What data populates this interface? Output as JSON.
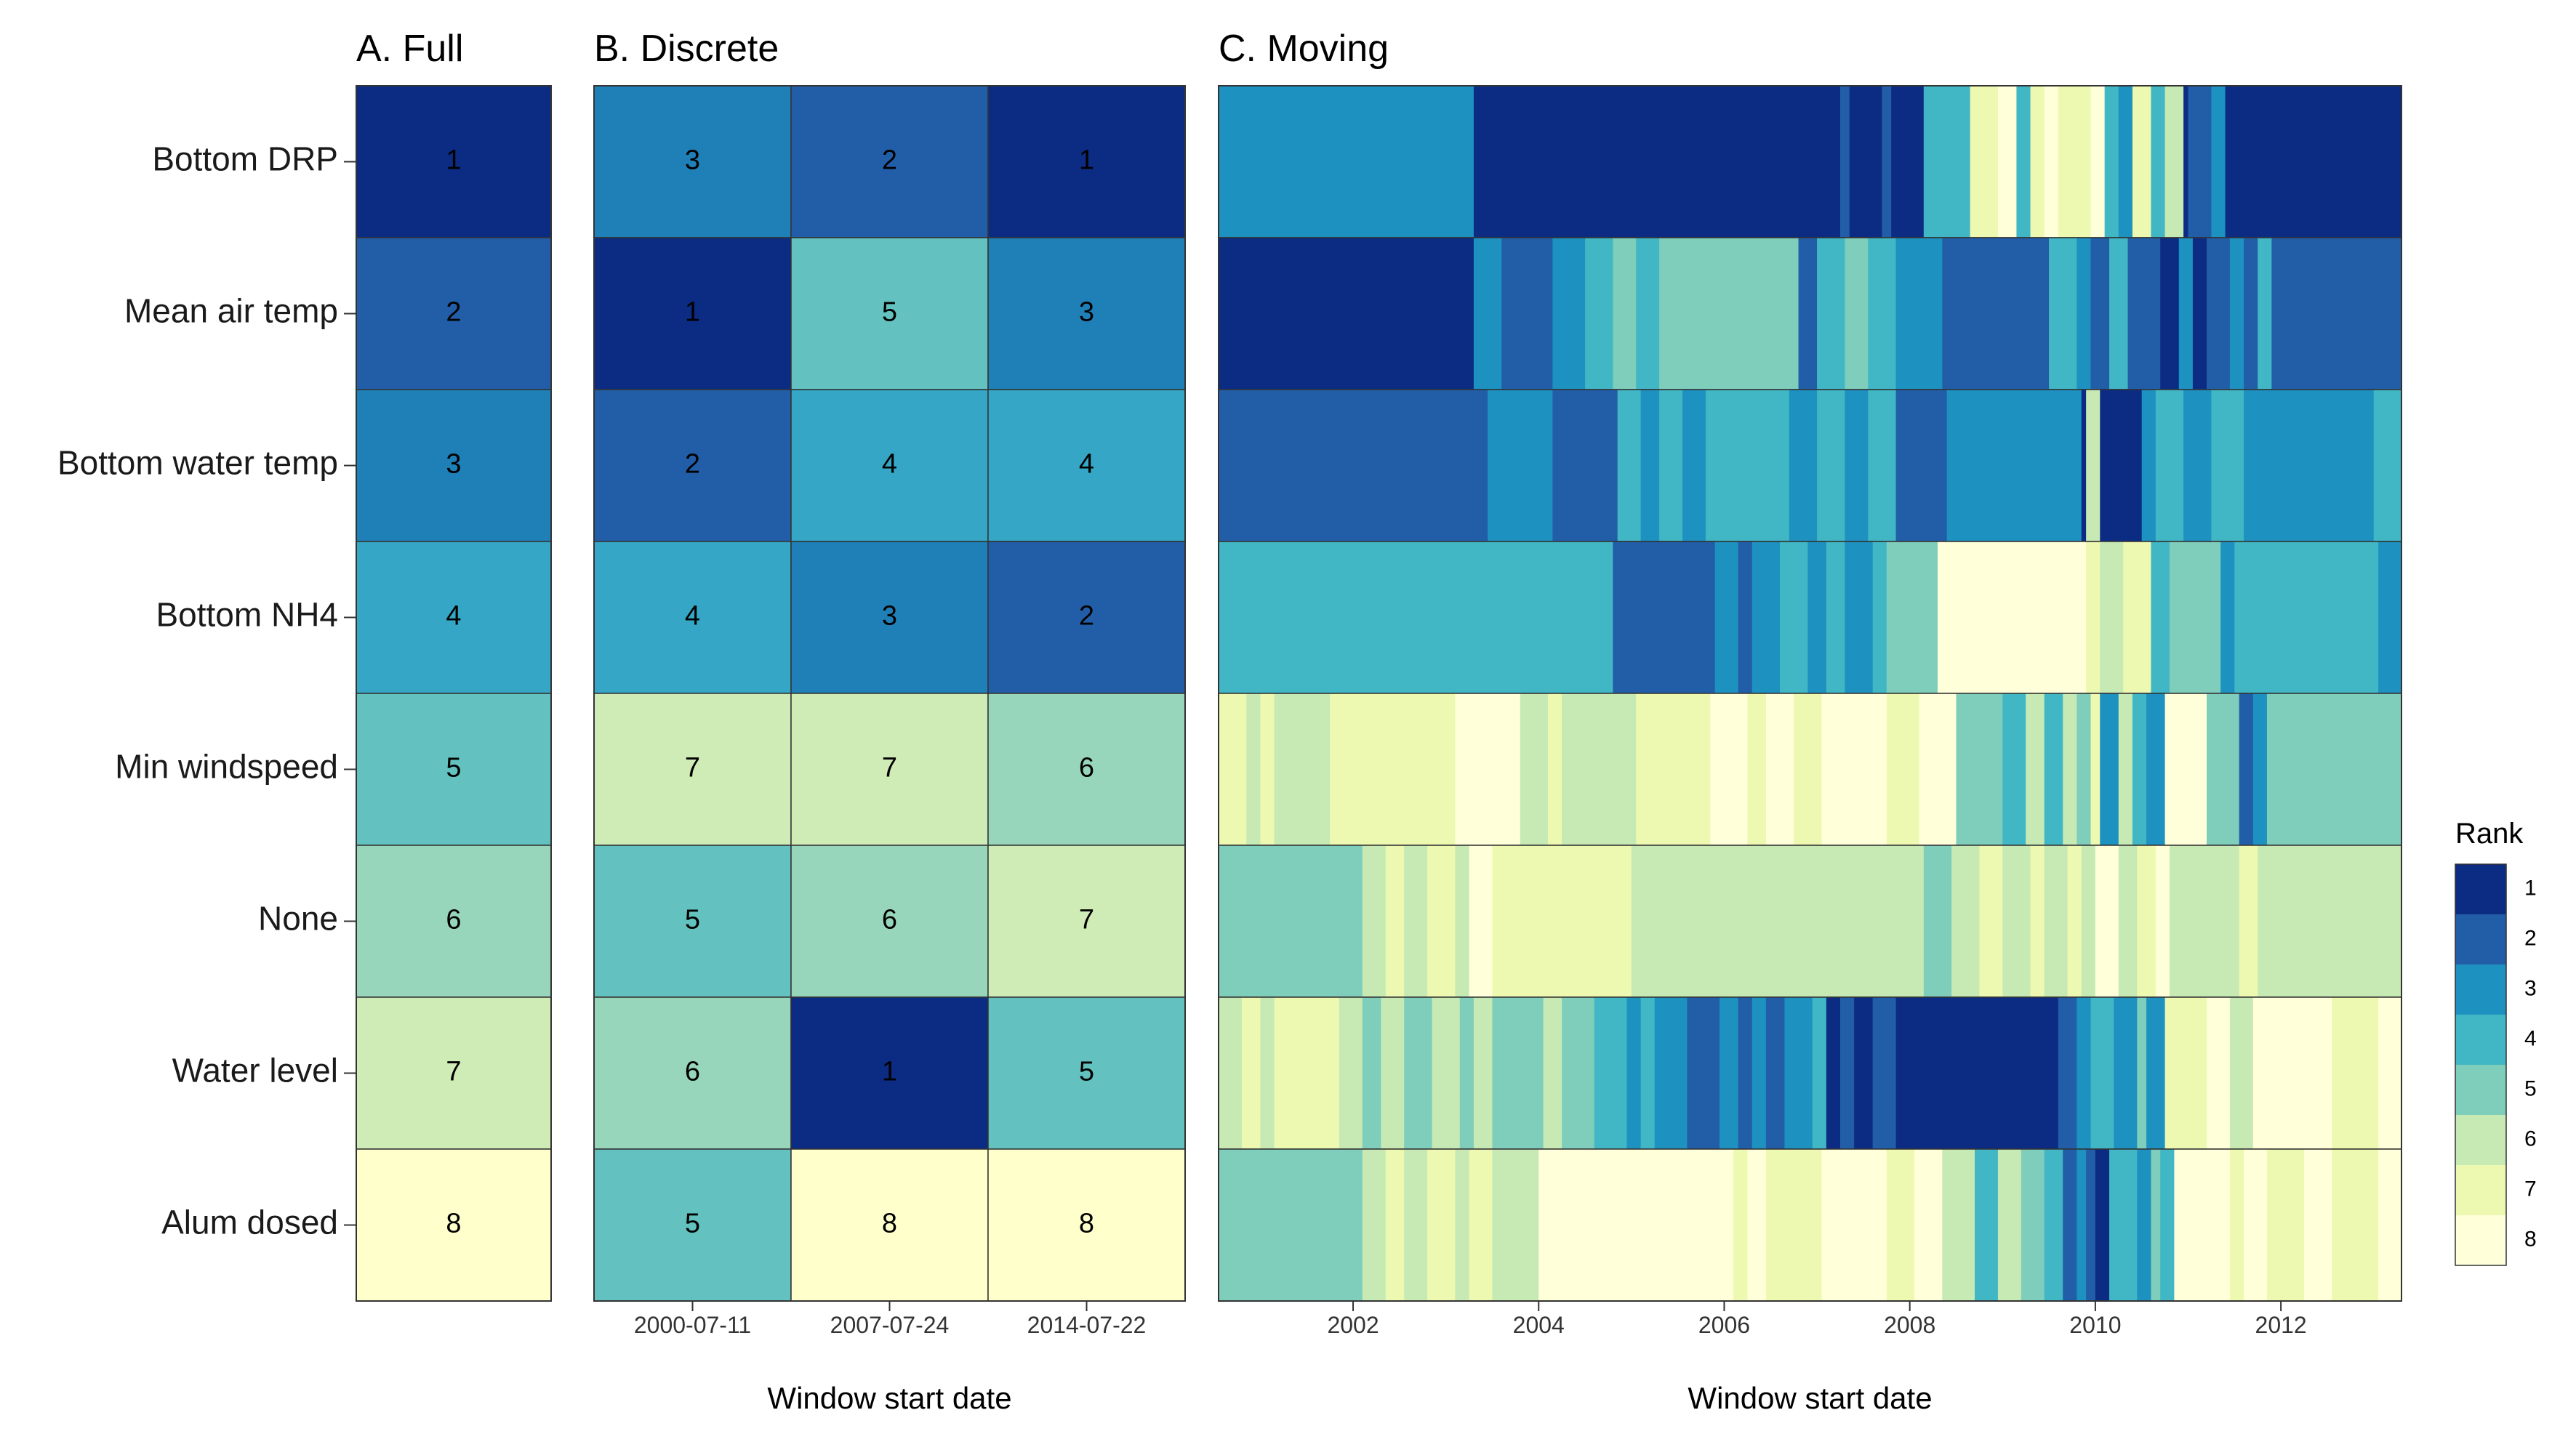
{
  "chart_data": {
    "type": "heatmap",
    "rows": [
      "Bottom DRP",
      "Mean air temp",
      "Bottom water temp",
      "Bottom NH4",
      "Min windspeed",
      "None",
      "Water level",
      "Alum dosed"
    ],
    "colors": {
      "1": "#0c2c84",
      "2": "#225ea8",
      "3": "#1d91c0",
      "4": "#41b6c4",
      "5": "#7fcdbb",
      "6": "#c7e9b4",
      "7": "#edf8b1",
      "8": "#ffffd9"
    },
    "cell_colors": {
      "1": "#0c2c84",
      "2": "#225ea8",
      "3": "#1f80b8",
      "4": "#35a6c5",
      "5": "#63c2bf",
      "6": "#97d6bb",
      "7": "#d0ecb6",
      "8": "#ffffcc"
    },
    "panels": {
      "full": {
        "title": "A. Full",
        "ranks": [
          1,
          2,
          3,
          4,
          5,
          6,
          7,
          8
        ]
      },
      "discrete": {
        "title": "B. Discrete",
        "xlabel": "Window start date",
        "windows": [
          "2000-07-11",
          "2007-07-24",
          "2014-07-22"
        ],
        "ranks": [
          [
            3,
            2,
            1
          ],
          [
            1,
            5,
            3
          ],
          [
            2,
            4,
            4
          ],
          [
            4,
            3,
            2
          ],
          [
            7,
            7,
            6
          ],
          [
            5,
            6,
            7
          ],
          [
            6,
            1,
            5
          ],
          [
            5,
            8,
            8
          ]
        ]
      },
      "moving": {
        "title": "C. Moving",
        "xlabel": "Window start date",
        "xlim": [
          2000.55,
          2013.3
        ],
        "xticks": [
          2002,
          2004,
          2006,
          2008,
          2010,
          2012
        ],
        "segments": [
          [
            [
              2003.3,
              3
            ],
            [
              2007.25,
              1
            ],
            [
              2007.35,
              2
            ],
            [
              2007.7,
              1
            ],
            [
              2007.8,
              2
            ],
            [
              2008.15,
              1
            ],
            [
              2008.4,
              4
            ],
            [
              2008.65,
              4
            ],
            [
              2008.95,
              7
            ],
            [
              2009.15,
              8
            ],
            [
              2009.3,
              4
            ],
            [
              2009.45,
              7
            ],
            [
              2009.6,
              8
            ],
            [
              2009.95,
              7
            ],
            [
              2010.1,
              8
            ],
            [
              2010.25,
              4
            ],
            [
              2010.4,
              3
            ],
            [
              2010.6,
              7
            ],
            [
              2010.75,
              4
            ],
            [
              2010.95,
              6
            ],
            [
              2011.0,
              1
            ],
            [
              2011.25,
              2
            ],
            [
              2011.4,
              3
            ],
            [
              2013.3,
              1
            ]
          ],
          [
            [
              2003.3,
              1
            ],
            [
              2003.4,
              3
            ],
            [
              2003.6,
              3
            ],
            [
              2004.15,
              2
            ],
            [
              2004.5,
              3
            ],
            [
              2004.8,
              4
            ],
            [
              2005.05,
              5
            ],
            [
              2005.3,
              4
            ],
            [
              2006.2,
              5
            ],
            [
              2006.8,
              5
            ],
            [
              2007.0,
              2
            ],
            [
              2007.3,
              4
            ],
            [
              2007.55,
              5
            ],
            [
              2007.85,
              4
            ],
            [
              2008.35,
              3
            ],
            [
              2009.5,
              2
            ],
            [
              2009.8,
              4
            ],
            [
              2009.95,
              3
            ],
            [
              2010.15,
              2
            ],
            [
              2010.35,
              4
            ],
            [
              2010.7,
              2
            ],
            [
              2010.9,
              1
            ],
            [
              2011.05,
              3
            ],
            [
              2011.2,
              1
            ],
            [
              2011.45,
              2
            ],
            [
              2011.6,
              3
            ],
            [
              2011.75,
              2
            ],
            [
              2011.9,
              4
            ],
            [
              2013.3,
              2
            ]
          ],
          [
            [
              2003.45,
              2
            ],
            [
              2003.55,
              3
            ],
            [
              2004.15,
              3
            ],
            [
              2004.85,
              2
            ],
            [
              2005.1,
              4
            ],
            [
              2005.3,
              3
            ],
            [
              2005.55,
              4
            ],
            [
              2005.8,
              3
            ],
            [
              2006.35,
              4
            ],
            [
              2006.7,
              4
            ],
            [
              2007.0,
              3
            ],
            [
              2007.3,
              4
            ],
            [
              2007.55,
              3
            ],
            [
              2007.85,
              4
            ],
            [
              2008.4,
              2
            ],
            [
              2009.85,
              3
            ],
            [
              2009.9,
              1
            ],
            [
              2010.05,
              6
            ],
            [
              2010.5,
              1
            ],
            [
              2010.65,
              3
            ],
            [
              2010.95,
              4
            ],
            [
              2011.25,
              3
            ],
            [
              2011.6,
              4
            ],
            [
              2011.9,
              3
            ],
            [
              2013.0,
              3
            ],
            [
              2013.3,
              4
            ]
          ],
          [
            [
              2004.8,
              4
            ],
            [
              2005.9,
              2
            ],
            [
              2006.15,
              3
            ],
            [
              2006.3,
              2
            ],
            [
              2006.6,
              3
            ],
            [
              2006.9,
              4
            ],
            [
              2007.1,
              3
            ],
            [
              2007.3,
              4
            ],
            [
              2007.6,
              3
            ],
            [
              2007.75,
              4
            ],
            [
              2008.3,
              5
            ],
            [
              2009.9,
              8
            ],
            [
              2010.05,
              7
            ],
            [
              2010.3,
              6
            ],
            [
              2010.6,
              7
            ],
            [
              2010.8,
              4
            ],
            [
              2011.35,
              5
            ],
            [
              2011.5,
              3
            ],
            [
              2011.75,
              4
            ],
            [
              2013.05,
              4
            ],
            [
              2013.3,
              3
            ]
          ],
          [
            [
              2000.85,
              7
            ],
            [
              2001.0,
              6
            ],
            [
              2001.15,
              7
            ],
            [
              2001.75,
              6
            ],
            [
              2003.1,
              7
            ],
            [
              2003.8,
              8
            ],
            [
              2004.1,
              6
            ],
            [
              2004.25,
              7
            ],
            [
              2004.5,
              6
            ],
            [
              2005.05,
              6
            ],
            [
              2005.85,
              7
            ],
            [
              2006.25,
              8
            ],
            [
              2006.45,
              7
            ],
            [
              2006.75,
              8
            ],
            [
              2007.05,
              7
            ],
            [
              2007.75,
              8
            ],
            [
              2008.1,
              7
            ],
            [
              2008.5,
              8
            ],
            [
              2009.0,
              5
            ],
            [
              2009.25,
              4
            ],
            [
              2009.45,
              6
            ],
            [
              2009.65,
              4
            ],
            [
              2009.8,
              6
            ],
            [
              2009.95,
              5
            ],
            [
              2010.05,
              7
            ],
            [
              2010.25,
              3
            ],
            [
              2010.4,
              6
            ],
            [
              2010.55,
              4
            ],
            [
              2010.75,
              3
            ],
            [
              2011.2,
              8
            ],
            [
              2011.55,
              5
            ],
            [
              2011.7,
              2
            ],
            [
              2011.85,
              3
            ],
            [
              2013.3,
              5
            ]
          ],
          [
            [
              2002.1,
              5
            ],
            [
              2002.35,
              6
            ],
            [
              2002.55,
              7
            ],
            [
              2002.8,
              6
            ],
            [
              2003.1,
              7
            ],
            [
              2003.25,
              6
            ],
            [
              2003.5,
              8
            ],
            [
              2003.8,
              7
            ],
            [
              2005.0,
              7
            ],
            [
              2008.15,
              6
            ],
            [
              2008.45,
              5
            ],
            [
              2008.75,
              6
            ],
            [
              2009.0,
              7
            ],
            [
              2009.3,
              6
            ],
            [
              2009.45,
              7
            ],
            [
              2009.7,
              6
            ],
            [
              2009.85,
              7
            ],
            [
              2010.0,
              6
            ],
            [
              2010.25,
              8
            ],
            [
              2010.45,
              6
            ],
            [
              2010.65,
              7
            ],
            [
              2010.8,
              8
            ],
            [
              2011.55,
              6
            ],
            [
              2011.75,
              7
            ],
            [
              2013.3,
              6
            ]
          ],
          [
            [
              2000.8,
              6
            ],
            [
              2001.0,
              7
            ],
            [
              2001.15,
              6
            ],
            [
              2001.85,
              7
            ],
            [
              2002.1,
              6
            ],
            [
              2002.3,
              5
            ],
            [
              2002.55,
              6
            ],
            [
              2002.85,
              5
            ],
            [
              2003.15,
              6
            ],
            [
              2003.3,
              5
            ],
            [
              2003.5,
              6
            ],
            [
              2004.05,
              5
            ],
            [
              2004.25,
              6
            ],
            [
              2004.6,
              5
            ],
            [
              2004.95,
              4
            ],
            [
              2005.1,
              3
            ],
            [
              2005.25,
              4
            ],
            [
              2005.6,
              3
            ],
            [
              2005.95,
              2
            ],
            [
              2006.15,
              3
            ],
            [
              2006.3,
              2
            ],
            [
              2006.45,
              3
            ],
            [
              2006.65,
              2
            ],
            [
              2006.95,
              3
            ],
            [
              2007.1,
              4
            ],
            [
              2007.25,
              1
            ],
            [
              2007.4,
              2
            ],
            [
              2007.6,
              1
            ],
            [
              2007.85,
              2
            ],
            [
              2008.2,
              1
            ],
            [
              2009.6,
              1
            ],
            [
              2009.8,
              2
            ],
            [
              2009.95,
              3
            ],
            [
              2010.2,
              4
            ],
            [
              2010.45,
              3
            ],
            [
              2010.55,
              5
            ],
            [
              2010.75,
              3
            ],
            [
              2011.2,
              7
            ],
            [
              2011.45,
              8
            ],
            [
              2011.7,
              6
            ],
            [
              2012.55,
              8
            ],
            [
              2013.05,
              7
            ],
            [
              2013.3,
              8
            ]
          ],
          [
            [
              2002.1,
              5
            ],
            [
              2002.35,
              6
            ],
            [
              2002.55,
              7
            ],
            [
              2002.8,
              6
            ],
            [
              2003.1,
              7
            ],
            [
              2003.25,
              6
            ],
            [
              2003.5,
              7
            ],
            [
              2004.0,
              6
            ],
            [
              2006.1,
              8
            ],
            [
              2006.25,
              7
            ],
            [
              2006.45,
              8
            ],
            [
              2007.05,
              7
            ],
            [
              2007.75,
              8
            ],
            [
              2008.05,
              7
            ],
            [
              2008.35,
              8
            ],
            [
              2008.7,
              6
            ],
            [
              2008.95,
              4
            ],
            [
              2009.2,
              6
            ],
            [
              2009.45,
              5
            ],
            [
              2009.65,
              4
            ],
            [
              2009.8,
              2
            ],
            [
              2009.9,
              3
            ],
            [
              2010.0,
              2
            ],
            [
              2010.15,
              1
            ],
            [
              2010.45,
              4
            ],
            [
              2010.6,
              3
            ],
            [
              2010.7,
              5
            ],
            [
              2010.85,
              4
            ],
            [
              2011.45,
              8
            ],
            [
              2011.6,
              7
            ],
            [
              2011.85,
              8
            ],
            [
              2012.25,
              7
            ],
            [
              2012.55,
              8
            ],
            [
              2013.05,
              7
            ],
            [
              2013.3,
              8
            ]
          ]
        ]
      }
    },
    "legend": {
      "title": "Rank",
      "position": "right",
      "items": [
        "1",
        "2",
        "3",
        "4",
        "5",
        "6",
        "7",
        "8"
      ]
    }
  }
}
